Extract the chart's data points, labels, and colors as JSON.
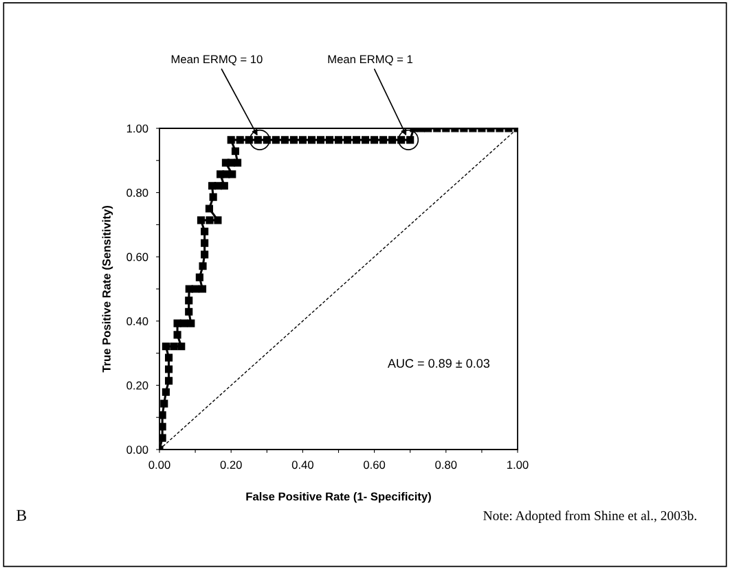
{
  "chart_data": {
    "type": "line",
    "xlabel": "False Positive Rate (1- Specificity)",
    "ylabel": "True Positive Rate (Sensitivity)",
    "xlim": [
      0,
      1
    ],
    "ylim": [
      0,
      1
    ],
    "xticks": [
      {
        "value": 0,
        "label": "0.00"
      },
      {
        "value": 0.1,
        "label": null
      },
      {
        "value": 0.2,
        "label": "0.20"
      },
      {
        "value": 0.3,
        "label": null
      },
      {
        "value": 0.4,
        "label": "0.40"
      },
      {
        "value": 0.5,
        "label": null
      },
      {
        "value": 0.6,
        "label": "0.60"
      },
      {
        "value": 0.7,
        "label": null
      },
      {
        "value": 0.8,
        "label": "0.80"
      },
      {
        "value": 0.9,
        "label": null
      },
      {
        "value": 1,
        "label": "1.00"
      }
    ],
    "yticks": [
      {
        "value": 0,
        "label": "0.00"
      },
      {
        "value": 0.1,
        "label": null
      },
      {
        "value": 0.2,
        "label": "0.20"
      },
      {
        "value": 0.3,
        "label": null
      },
      {
        "value": 0.4,
        "label": "0.40"
      },
      {
        "value": 0.5,
        "label": null
      },
      {
        "value": 0.6,
        "label": "0.60"
      },
      {
        "value": 0.7,
        "label": null
      },
      {
        "value": 0.8,
        "label": "0.80"
      },
      {
        "value": 0.9,
        "label": null
      },
      {
        "value": 1,
        "label": "1.00"
      }
    ],
    "grid": false,
    "legend": false,
    "series": [
      {
        "color": "#000000",
        "marker": "square",
        "line_style": "solid",
        "x": [
          0,
          0.008,
          0.008,
          0.008,
          0.013,
          0.018,
          0.026,
          0.026,
          0.026,
          0.018,
          0.04,
          0.061,
          0.05,
          0.05,
          0.068,
          0.088,
          0.082,
          0.082,
          0.083,
          0.1,
          0.12,
          0.112,
          0.121,
          0.126,
          0.126,
          0.126,
          0.116,
          0.14,
          0.163,
          0.139,
          0.15,
          0.147,
          0.164,
          0.181,
          0.17,
          0.186,
          0.203,
          0.185,
          0.2,
          0.218,
          0.212,
          0.2,
          0.225,
          0.25,
          0.275,
          0.3,
          0.325,
          0.35,
          0.375,
          0.4,
          0.425,
          0.45,
          0.475,
          0.5,
          0.525,
          0.55,
          0.575,
          0.6,
          0.625,
          0.65,
          0.675,
          0.7,
          0.71,
          0.73,
          0.75,
          0.775,
          0.8,
          0.825,
          0.85,
          0.875,
          0.9,
          0.925,
          0.95,
          0.975,
          1.0
        ],
        "values": [
          0,
          0.036,
          0.071,
          0.107,
          0.143,
          0.179,
          0.214,
          0.25,
          0.286,
          0.321,
          0.321,
          0.321,
          0.357,
          0.393,
          0.393,
          0.393,
          0.429,
          0.464,
          0.5,
          0.5,
          0.5,
          0.536,
          0.571,
          0.607,
          0.643,
          0.679,
          0.714,
          0.714,
          0.714,
          0.75,
          0.786,
          0.821,
          0.821,
          0.821,
          0.857,
          0.857,
          0.857,
          0.893,
          0.893,
          0.893,
          0.929,
          0.964,
          0.964,
          0.964,
          0.964,
          0.964,
          0.964,
          0.964,
          0.964,
          0.964,
          0.964,
          0.964,
          0.964,
          0.964,
          0.964,
          0.964,
          0.964,
          0.964,
          0.964,
          0.964,
          0.964,
          0.964,
          1.0,
          1.0,
          1.0,
          1.0,
          1.0,
          1.0,
          1.0,
          1.0,
          1.0,
          1.0,
          1.0,
          1.0,
          1.0
        ]
      },
      {
        "type": "line",
        "color": "#000000",
        "marker": "none",
        "line_style": "dashed",
        "x": [
          0,
          1
        ],
        "values": [
          0,
          1
        ]
      },
      {
        "type": "scatter",
        "color": "#000000",
        "marker": "circle",
        "x": [
          0.28,
          0.695
        ],
        "values": [
          0.964,
          0.964
        ]
      }
    ],
    "annotations": [
      {
        "text": "Mean ERMQ = 10",
        "x": 0.28,
        "y": 0.964
      },
      {
        "text": "Mean ERMQ = 1",
        "x": 0.695,
        "y": 0.964
      },
      "AUC = 0.89 ± 0.03",
      "Note: Adopted from Shine et al., 2003b.",
      "B"
    ]
  }
}
